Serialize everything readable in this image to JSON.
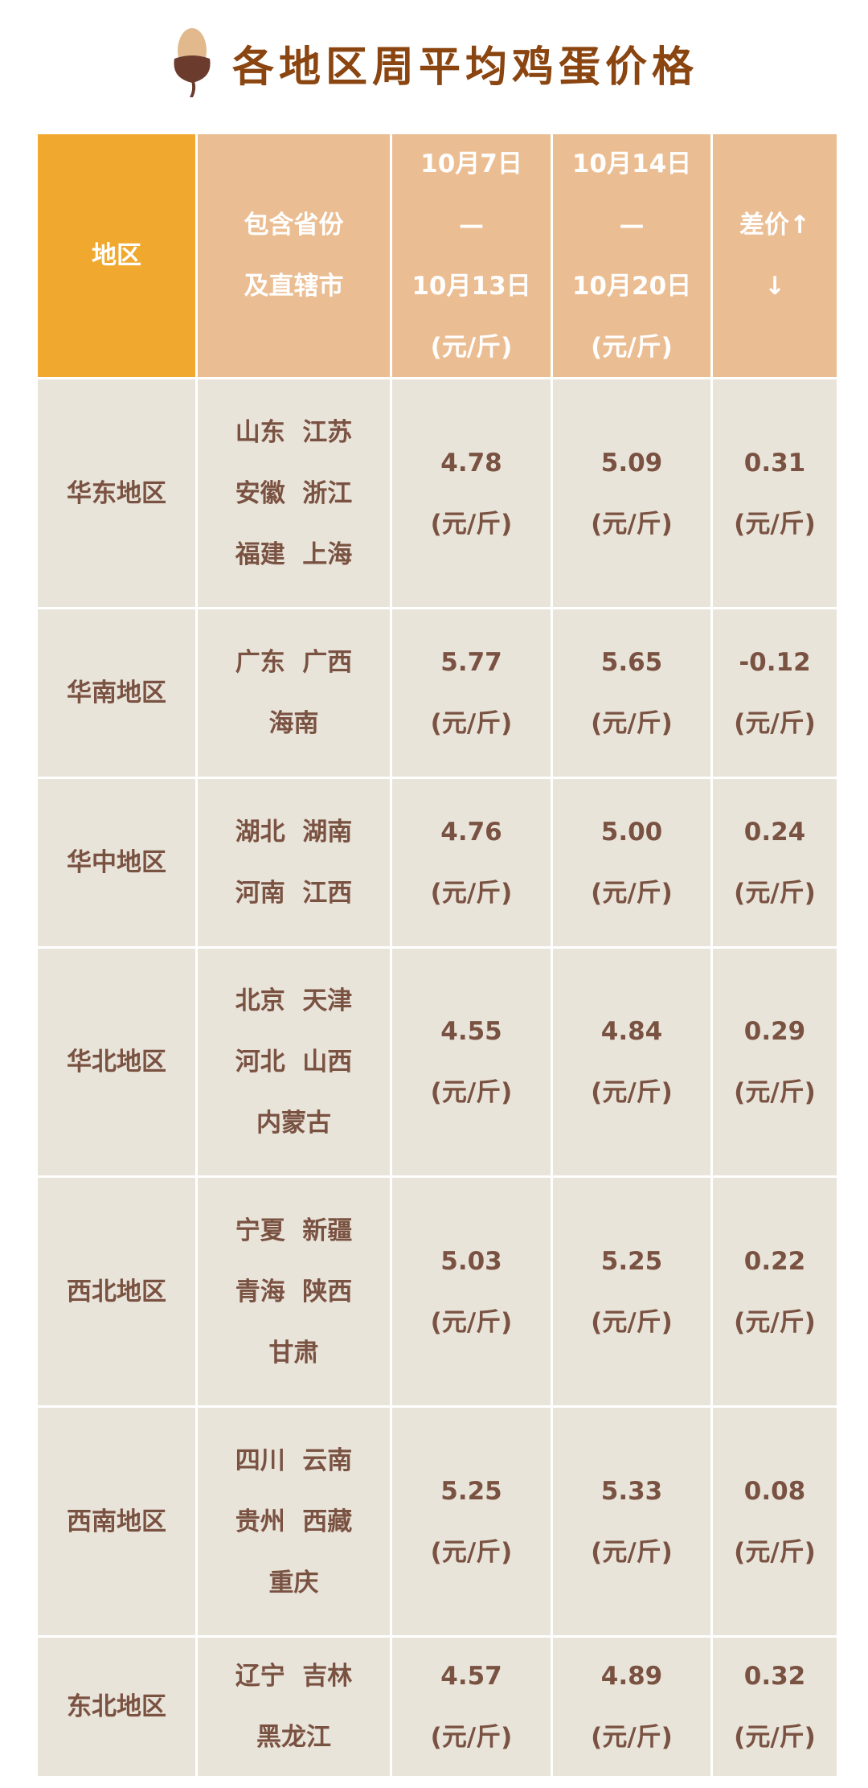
{
  "title": "各地区周平均鸡蛋价格",
  "title_icon": "acorn-icon",
  "colors": {
    "title": "#8a4510",
    "header_primary": "#f0a82e",
    "header": "#ebbd92",
    "body": "#e9e4da",
    "text": "#7a5242"
  },
  "table": {
    "headers": [
      [
        "地区"
      ],
      [
        "包含省份",
        "及直辖市"
      ],
      [
        "10月7日",
        "—",
        "10月13日",
        "(元/斤)"
      ],
      [
        "10月14日",
        "—",
        "10月20日",
        "(元/斤)"
      ],
      [
        "差价↑",
        "↓"
      ]
    ],
    "rows": [
      {
        "region": "华东地区",
        "provinces": [
          "山东  江苏",
          "安徽  浙江",
          "福建  上海"
        ],
        "week1": "4.78",
        "week2": "5.09",
        "diff": "0.31",
        "unit": "(元/斤)"
      },
      {
        "region": "华南地区",
        "provinces": [
          "广东  广西",
          "海南"
        ],
        "week1": "5.77",
        "week2": "5.65",
        "diff": "-0.12",
        "unit": "(元/斤)"
      },
      {
        "region": "华中地区",
        "provinces": [
          "湖北  湖南",
          "河南  江西"
        ],
        "week1": "4.76",
        "week2": "5.00",
        "diff": "0.24",
        "unit": "(元/斤)"
      },
      {
        "region": "华北地区",
        "provinces": [
          "北京  天津",
          "河北  山西",
          "内蒙古"
        ],
        "week1": "4.55",
        "week2": "4.84",
        "diff": "0.29",
        "unit": "(元/斤)"
      },
      {
        "region": "西北地区",
        "provinces": [
          "宁夏  新疆",
          "青海  陕西",
          "甘肃"
        ],
        "week1": "5.03",
        "week2": "5.25",
        "diff": "0.22",
        "unit": "(元/斤)"
      },
      {
        "region": "西南地区",
        "provinces": [
          "四川  云南",
          "贵州  西藏",
          "重庆"
        ],
        "week1": "5.25",
        "week2": "5.33",
        "diff": "0.08",
        "unit": "(元/斤)"
      },
      {
        "region": "东北地区",
        "provinces": [
          "辽宁  吉林",
          "黑龙江"
        ],
        "week1": "4.57",
        "week2": "4.89",
        "diff": "0.32",
        "unit": "(元/斤)"
      }
    ]
  }
}
